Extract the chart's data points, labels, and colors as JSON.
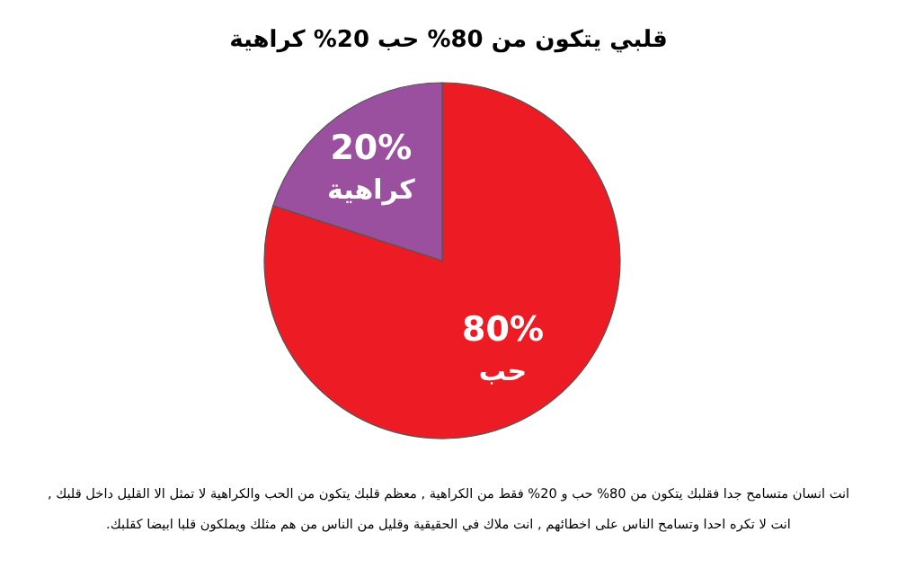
{
  "chart_data": {
    "type": "pie",
    "title": "قلبي يتكون من 80% حب 20% كراهية",
    "categories": [
      "حب",
      "كراهية"
    ],
    "values": [
      80,
      20
    ],
    "colors": [
      "#ed1c24",
      "#9b4f9f"
    ],
    "value_labels": [
      "80%",
      "20%"
    ],
    "annotations": [
      "انت انسان متسامح جدا فقلبك يتكون من 80% حب و 20% فقط من الكراهية , معظم قلبك يتكون من الحب والكراهية لا تمثل الا القليل داخل قلبك ,",
      "انت لا تكره احدا وتسامح الناس على اخطائهم , انت ملاك في الحقيقية وقليل من الناس من هم مثلك ويملكون قلبا ابيضا كقلبك."
    ]
  }
}
